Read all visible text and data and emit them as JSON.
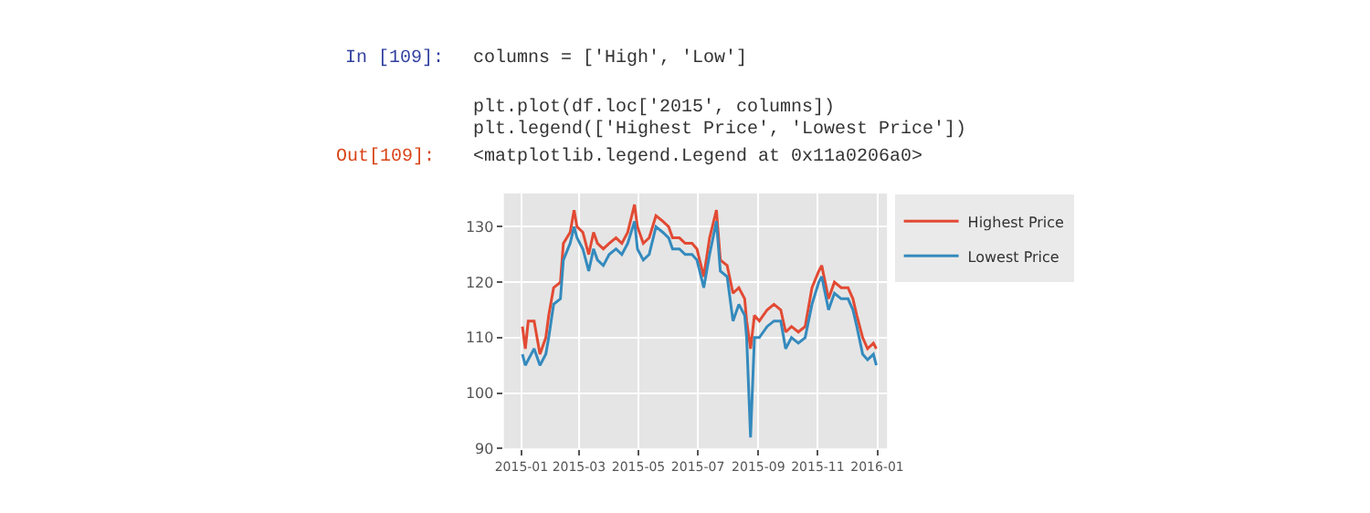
{
  "chart_data": {
    "type": "line",
    "x": [
      "2015-01-02",
      "2015-01-05",
      "2015-01-08",
      "2015-01-14",
      "2015-01-20",
      "2015-01-26",
      "2015-01-29",
      "2015-02-03",
      "2015-02-10",
      "2015-02-13",
      "2015-02-20",
      "2015-02-24",
      "2015-02-27",
      "2015-03-05",
      "2015-03-11",
      "2015-03-16",
      "2015-03-20",
      "2015-03-26",
      "2015-04-01",
      "2015-04-08",
      "2015-04-14",
      "2015-04-20",
      "2015-04-27",
      "2015-04-30",
      "2015-05-06",
      "2015-05-12",
      "2015-05-19",
      "2015-05-26",
      "2015-06-01",
      "2015-06-05",
      "2015-06-12",
      "2015-06-18",
      "2015-06-25",
      "2015-06-30",
      "2015-07-07",
      "2015-07-13",
      "2015-07-20",
      "2015-07-24",
      "2015-07-31",
      "2015-08-06",
      "2015-08-12",
      "2015-08-18",
      "2015-08-20",
      "2015-08-24",
      "2015-08-28",
      "2015-09-02",
      "2015-09-10",
      "2015-09-17",
      "2015-09-24",
      "2015-09-29",
      "2015-10-05",
      "2015-10-12",
      "2015-10-19",
      "2015-10-26",
      "2015-11-02",
      "2015-11-05",
      "2015-11-12",
      "2015-11-18",
      "2015-11-25",
      "2015-12-02",
      "2015-12-07",
      "2015-12-11",
      "2015-12-17",
      "2015-12-22",
      "2015-12-28",
      "2015-12-31"
    ],
    "series": [
      {
        "name": "Highest Price",
        "color": "#e24a33",
        "values": [
          112,
          108,
          113,
          113,
          107,
          110,
          114,
          119,
          120,
          127,
          129,
          133,
          130,
          129,
          125,
          129,
          127,
          126,
          127,
          128,
          127,
          129,
          134,
          130,
          127,
          128,
          132,
          131,
          130,
          128,
          128,
          127,
          127,
          126,
          121,
          128,
          133,
          124,
          123,
          118,
          119,
          117,
          113,
          108,
          114,
          113,
          115,
          116,
          115,
          111,
          112,
          111,
          112,
          119,
          122,
          123,
          117,
          120,
          119,
          119,
          117,
          114,
          110,
          108,
          109,
          108
        ]
      },
      {
        "name": "Lowest Price",
        "color": "#348abd",
        "values": [
          107,
          105,
          106,
          108,
          105,
          107,
          110,
          116,
          117,
          124,
          127,
          130,
          128,
          126,
          122,
          126,
          124,
          123,
          125,
          126,
          125,
          127,
          131,
          126,
          124,
          125,
          130,
          129,
          128,
          126,
          126,
          125,
          125,
          124,
          119,
          125,
          131,
          122,
          121,
          113,
          116,
          114,
          110,
          92,
          110,
          110,
          112,
          113,
          113,
          108,
          110,
          109,
          110,
          116,
          120,
          121,
          115,
          118,
          117,
          117,
          115,
          112,
          107,
          106,
          107,
          105
        ]
      }
    ],
    "xlim": [
      "2014-12-14",
      "2016-01-11"
    ],
    "xticks": [
      {
        "value": "2015-01-01",
        "label": "2015-01"
      },
      {
        "value": "2015-03-01",
        "label": "2015-03"
      },
      {
        "value": "2015-05-01",
        "label": "2015-05"
      },
      {
        "value": "2015-07-01",
        "label": "2015-07"
      },
      {
        "value": "2015-09-01",
        "label": "2015-09"
      },
      {
        "value": "2015-11-01",
        "label": "2015-11"
      },
      {
        "value": "2016-01-01",
        "label": "2016-01"
      }
    ],
    "ylim": [
      90,
      136
    ],
    "yticks": [
      90,
      100,
      110,
      120,
      130
    ],
    "grid": true,
    "legend": "right",
    "line_style": "solid",
    "annotations": [
      "In [109]:",
      "columns = ['High', 'Low']",
      "plt.plot(df.loc['2015', columns])",
      "plt.legend(['Highest Price', 'Lowest Price'])",
      "Out[109]:",
      "<matplotlib.legend.Legend at 0x11a0206a0>"
    ]
  }
}
